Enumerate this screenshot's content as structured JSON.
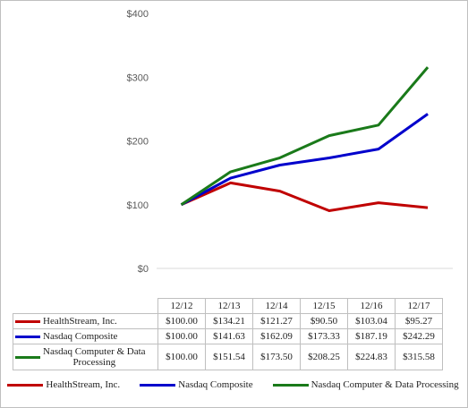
{
  "chart_data": {
    "type": "line",
    "categories": [
      "12/12",
      "12/13",
      "12/14",
      "12/15",
      "12/16",
      "12/17"
    ],
    "ylim": [
      0,
      400
    ],
    "yticks": [
      "$400",
      "$300",
      "$200",
      "$100",
      "$0"
    ],
    "ytick_values": [
      400,
      300,
      200,
      100,
      0
    ],
    "grid": false,
    "legend_placement": "bottom",
    "series": [
      {
        "name": "HealthStream, Inc.",
        "color": "#c00000",
        "values": [
          100.0,
          134.21,
          121.27,
          90.5,
          103.04,
          95.27
        ],
        "labels": [
          "$100.00",
          "$134.21",
          "$121.27",
          "$90.50",
          "$103.04",
          "$95.27"
        ]
      },
      {
        "name": "Nasdaq Composite",
        "color": "#0000cc",
        "values": [
          100.0,
          141.63,
          162.09,
          173.33,
          187.19,
          242.29
        ],
        "labels": [
          "$100.00",
          "$141.63",
          "$162.09",
          "$173.33",
          "$187.19",
          "$242.29"
        ]
      },
      {
        "name": "Nasdaq Computer & Data Processing",
        "table_name_lines": [
          "Nasdaq Computer & Data",
          "Processing"
        ],
        "color": "#1a7a1a",
        "values": [
          100.0,
          151.54,
          173.5,
          208.25,
          224.83,
          315.58
        ],
        "labels": [
          "$100.00",
          "$151.54",
          "$173.50",
          "$208.25",
          "$224.83",
          "$315.58"
        ]
      }
    ]
  }
}
